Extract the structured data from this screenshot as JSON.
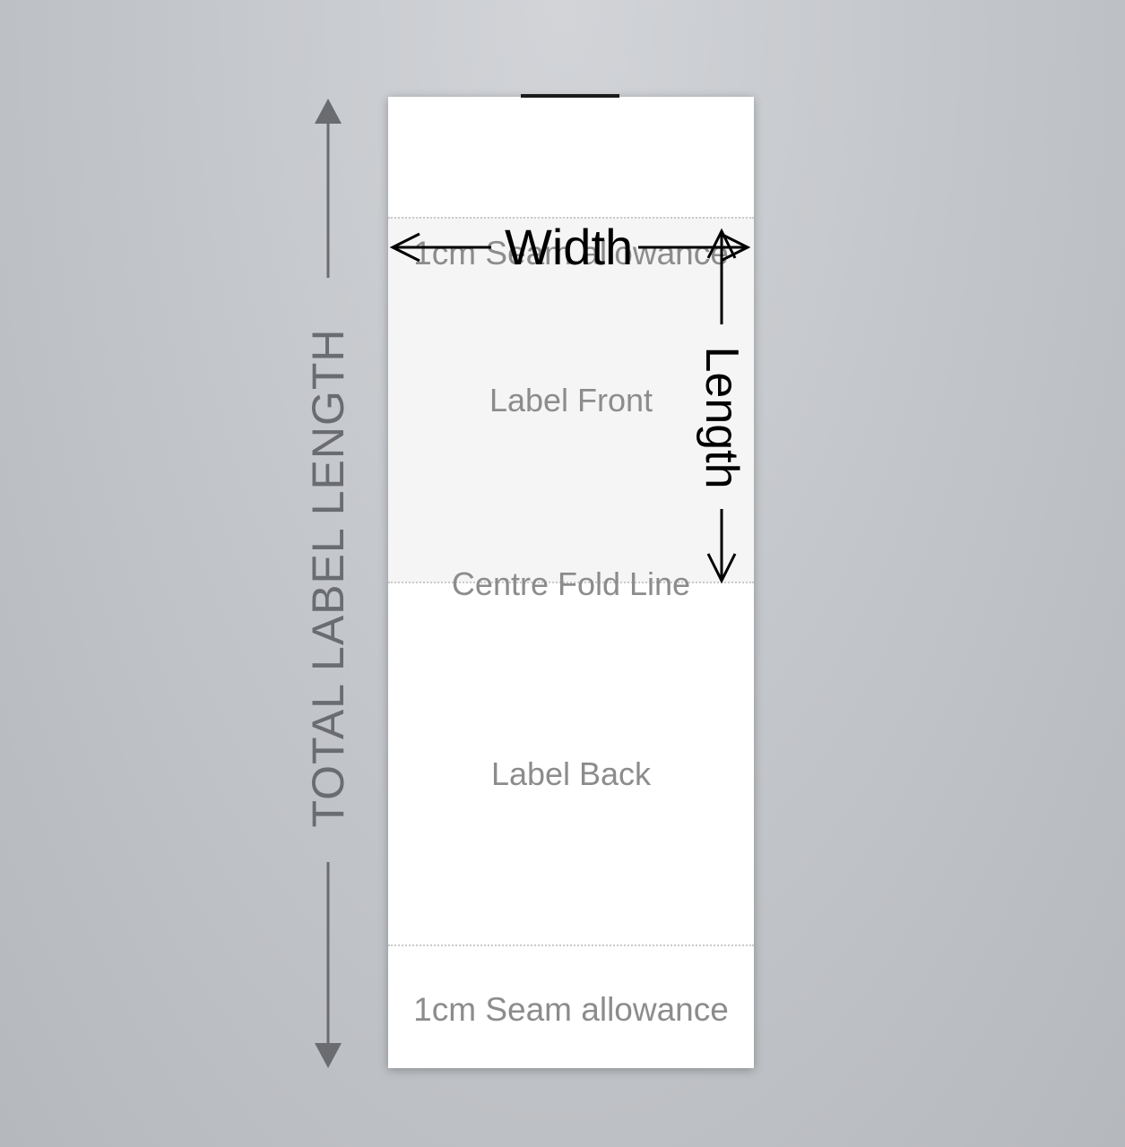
{
  "label": {
    "seam_top": "1cm Seam allowance",
    "front": "Label Front",
    "fold_line": "Centre Fold Line",
    "back": "Label Back",
    "seam_bottom": "1cm Seam allowance"
  },
  "dimensions": {
    "width": "Width",
    "length": "Length",
    "total_length": "TOTAL LABEL LENGTH"
  },
  "colors": {
    "background": "#c4c7cb",
    "label": "#ffffff",
    "front_area": "#f5f5f5",
    "text_grey": "#8c8c8c",
    "arrow_black": "#000000",
    "arrow_grey": "#6a6c70"
  }
}
